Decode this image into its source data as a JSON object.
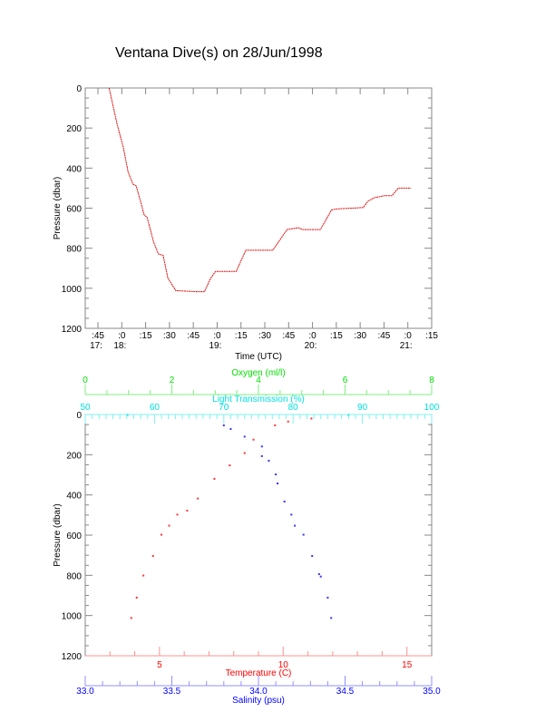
{
  "title": "Ventana Dive(s) on 28/Jun/1998",
  "colors": {
    "axis": "#888888",
    "pressure_trace": "#e01010",
    "temperature": "#ff0000",
    "salinity": "#0000ff",
    "light": "#00e0e0",
    "oxygen": "#00e000"
  },
  "chart_data": [
    {
      "type": "line",
      "xlabel": "Time (UTC)",
      "ylabel": "Pressure (dbar)",
      "xlim": [
        "17:37",
        "21:15"
      ],
      "ylim": [
        1200,
        0
      ],
      "x_ticks": [
        {
          "time": "17:45",
          "label": ":45",
          "hour": "17:"
        },
        {
          "time": "18:00",
          "label": ":0",
          "hour": "18:"
        },
        {
          "time": "18:15",
          "label": ":15",
          "hour": ""
        },
        {
          "time": "18:30",
          "label": ":30",
          "hour": ""
        },
        {
          "time": "18:45",
          "label": ":45",
          "hour": ""
        },
        {
          "time": "19:00",
          "label": ":0",
          "hour": "19:"
        },
        {
          "time": "19:15",
          "label": ":15",
          "hour": ""
        },
        {
          "time": "19:30",
          "label": ":30",
          "hour": ""
        },
        {
          "time": "19:45",
          "label": ":45",
          "hour": ""
        },
        {
          "time": "20:00",
          "label": ":0",
          "hour": "20:"
        },
        {
          "time": "20:15",
          "label": ":15",
          "hour": ""
        },
        {
          "time": "20:30",
          "label": ":30",
          "hour": ""
        },
        {
          "time": "20:45",
          "label": ":45",
          "hour": ""
        },
        {
          "time": "21:00",
          "label": ":0",
          "hour": "21:"
        },
        {
          "time": "21:15",
          "label": ":15",
          "hour": ""
        }
      ],
      "y_ticks": [
        "0",
        "200",
        "400",
        "600",
        "800",
        "1000",
        "1200"
      ],
      "series": [
        {
          "x": [
            "17:52",
            "17:57",
            "18:01",
            "18:04",
            "18:07",
            "18:09",
            "18:12",
            "18:14",
            "18:16",
            "18:20",
            "18:23",
            "18:26",
            "18:29",
            "18:34",
            "18:48",
            "18:52",
            "18:56",
            "18:59",
            "19:12",
            "19:18",
            "19:35",
            "19:44",
            "19:51",
            "19:54",
            "20:05",
            "20:12",
            "20:15",
            "20:32",
            "20:35",
            "20:39",
            "20:45",
            "20:50",
            "20:54",
            "21:02"
          ],
          "y": [
            0,
            178,
            299,
            420,
            480,
            488,
            571,
            632,
            647,
            768,
            828,
            836,
            949,
            1012,
            1017,
            1017,
            949,
            916,
            916,
            810,
            810,
            707,
            698,
            707,
            707,
            609,
            604,
            597,
            564,
            548,
            538,
            538,
            500,
            500
          ]
        }
      ]
    },
    {
      "type": "scatter",
      "ylabel": "Pressure (dbar)",
      "ylim": [
        1200,
        0
      ],
      "y_ticks": [
        "0",
        "200",
        "400",
        "600",
        "800",
        "1000",
        "1200"
      ],
      "axes": {
        "temperature": {
          "label": "Temperature (C)",
          "lim": [
            2,
            16
          ],
          "ticks": [
            "5",
            "10",
            "15"
          ]
        },
        "salinity": {
          "label": "Salinity (psu)",
          "lim": [
            33.0,
            35.0
          ],
          "ticks": [
            "33.0",
            "33.5",
            "34.0",
            "34.5",
            "35.0"
          ]
        },
        "light": {
          "label": "Light Transmission (%)",
          "lim": [
            50,
            100
          ],
          "ticks": [
            "50",
            "60",
            "70",
            "80",
            "90",
            "100"
          ]
        },
        "oxygen": {
          "label": "Oxygen (ml/l)",
          "lim": [
            0,
            8
          ],
          "ticks": [
            "0",
            "2",
            "4",
            "6",
            "8"
          ]
        }
      },
      "series": [
        {
          "axis": "temperature",
          "x": [
            11.14,
            10.2,
            9.67,
            8.8,
            8.44,
            7.84,
            7.22,
            6.55,
            6.12,
            5.72,
            5.39,
            5.08,
            4.74,
            4.35,
            4.08,
            3.86
          ],
          "y": [
            20,
            35,
            54,
            125,
            192,
            253,
            320,
            418,
            478,
            498,
            553,
            598,
            704,
            801,
            911,
            1012
          ]
        },
        {
          "axis": "salinity",
          "x": [
            33.8,
            33.84,
            33.92,
            34.02,
            34.02,
            34.06,
            34.1,
            34.11,
            34.15,
            34.19,
            34.21,
            34.26,
            34.31,
            34.35,
            34.36,
            34.4,
            34.42
          ],
          "y": [
            54,
            72,
            110,
            159,
            207,
            230,
            298,
            343,
            433,
            498,
            553,
            598,
            704,
            794,
            806,
            911,
            1012
          ]
        },
        {
          "axis": "light",
          "x": [
            56.1,
            88.0
          ],
          "y": [
            2,
            2
          ]
        }
      ]
    }
  ]
}
